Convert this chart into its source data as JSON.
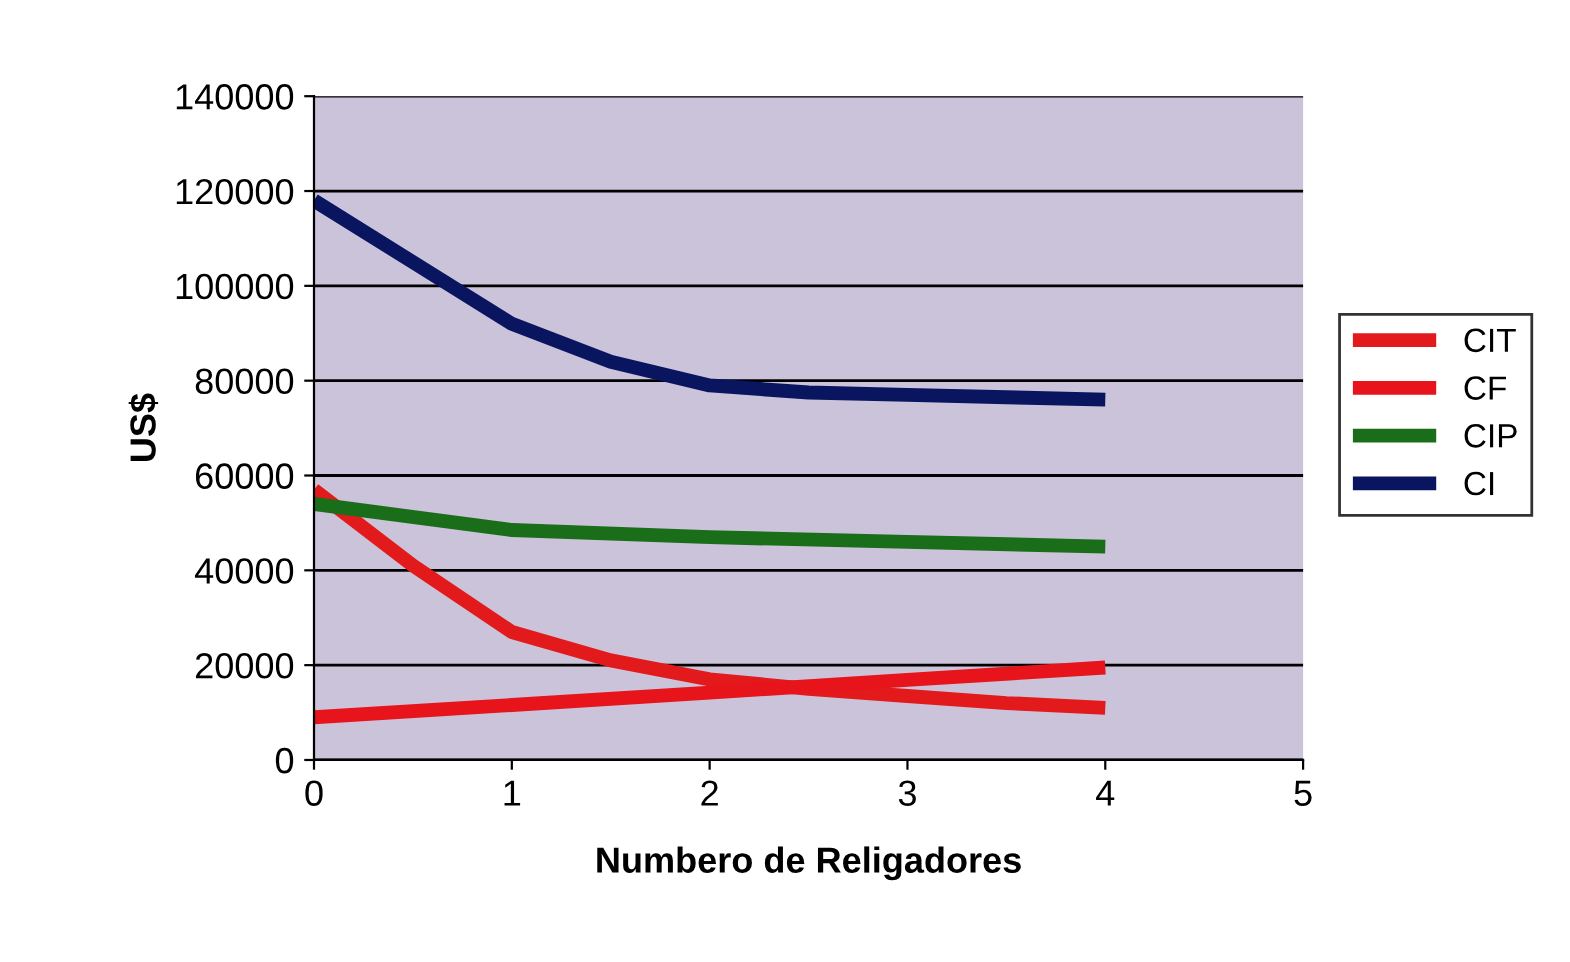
{
  "chart_data": {
    "type": "line",
    "xlabel": "Numbero de Religadores",
    "ylabel": "US$",
    "xlim": [
      0,
      5
    ],
    "xticks": [
      0,
      1,
      2,
      3,
      4,
      5
    ],
    "ylim": [
      0,
      140000
    ],
    "yticks": [
      0,
      20000,
      40000,
      60000,
      80000,
      100000,
      120000,
      140000
    ],
    "grid": "y",
    "legend": "right",
    "marker": "none",
    "line_style": "solid",
    "series": [
      {
        "name": "CIT",
        "color": "#e31a1c",
        "x": [
          0,
          0.5,
          1,
          1.5,
          2,
          2.5,
          3,
          3.5,
          4
        ],
        "values": [
          57000,
          41000,
          27000,
          21000,
          17000,
          15000,
          13500,
          12000,
          11000
        ]
      },
      {
        "name": "CF",
        "color": "#e8141c",
        "x": [
          0,
          1,
          2,
          3,
          4
        ],
        "values": [
          9000,
          11600,
          14200,
          16900,
          19500
        ]
      },
      {
        "name": "CIP",
        "color": "#1a6e1a",
        "x": [
          0,
          1,
          2,
          3,
          4
        ],
        "values": [
          54000,
          48500,
          47000,
          46000,
          45000
        ]
      },
      {
        "name": "CI",
        "color": "#0a1560",
        "x": [
          0,
          0.5,
          1,
          1.5,
          2,
          2.5,
          3,
          3.5,
          4
        ],
        "values": [
          118000,
          105000,
          92000,
          84000,
          79000,
          77500,
          77000,
          76500,
          76000
        ]
      }
    ]
  }
}
